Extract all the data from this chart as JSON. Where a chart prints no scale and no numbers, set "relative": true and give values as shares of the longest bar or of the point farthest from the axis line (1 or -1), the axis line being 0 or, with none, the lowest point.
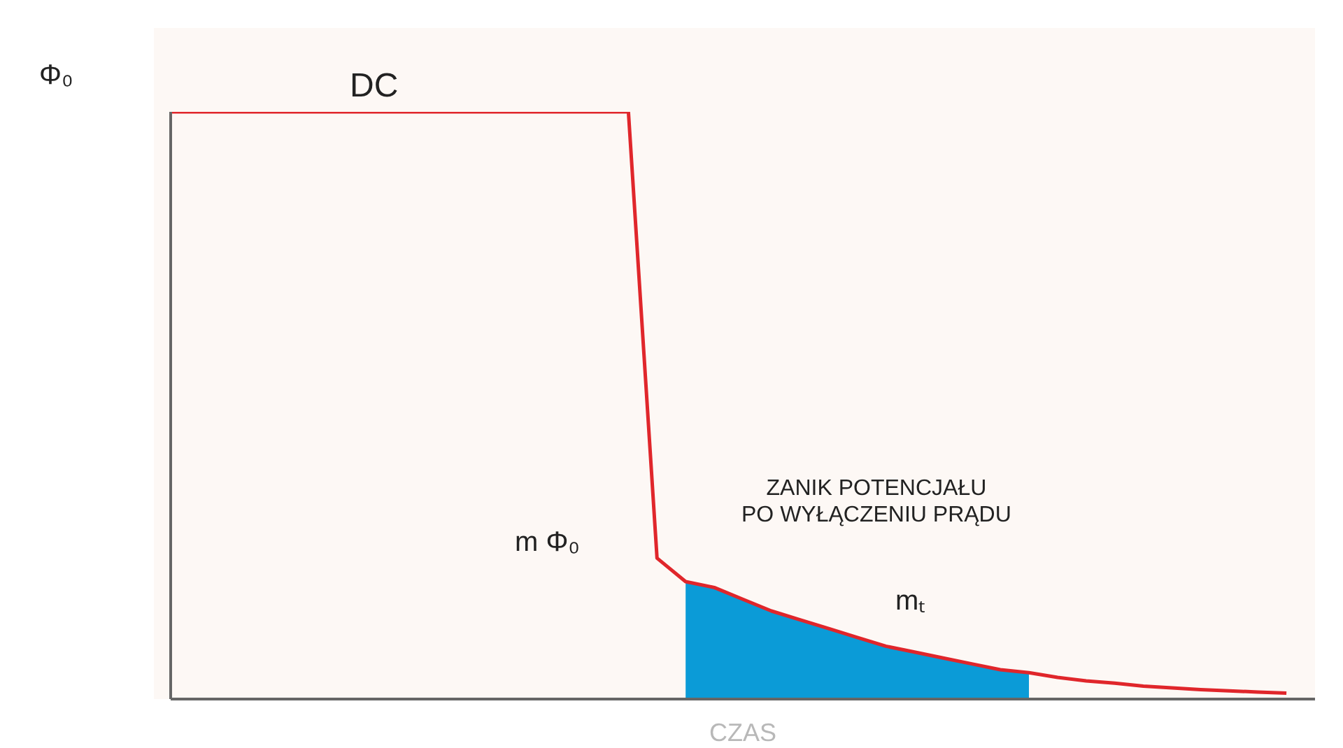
{
  "chart_data": {
    "type": "line",
    "relative": true,
    "xlabel": "CZAS",
    "categories": [
      null,
      null,
      null,
      null,
      null,
      null,
      null,
      null,
      null,
      null,
      null,
      null,
      null,
      null,
      null,
      null,
      null,
      null,
      null,
      null,
      null,
      null,
      null,
      null,
      null,
      null,
      null,
      null,
      null,
      null,
      null,
      null,
      null,
      null,
      null,
      null,
      null,
      null,
      null,
      null,
      null
    ],
    "series": [
      {
        "type": "area",
        "color": "#0b9bd7",
        "values": [
          null,
          null,
          null,
          null,
          null,
          null,
          null,
          null,
          null,
          null,
          null,
          null,
          null,
          null,
          null,
          null,
          null,
          null,
          0.2,
          0.19,
          0.17,
          0.15,
          0.135,
          0.12,
          0.105,
          0.09,
          0.08,
          0.07,
          0.06,
          0.05,
          0.045,
          null,
          null,
          null,
          null,
          null,
          null,
          null,
          null,
          null,
          null
        ]
      },
      {
        "color": "#e0262b",
        "values": [
          1,
          1,
          1,
          1,
          1,
          1,
          1,
          1,
          1,
          1,
          1,
          1,
          1,
          1,
          1,
          1,
          1,
          0.24,
          0.2,
          0.19,
          0.17,
          0.15,
          0.135,
          0.12,
          0.105,
          0.09,
          0.08,
          0.07,
          0.06,
          0.05,
          0.045,
          0.037,
          0.031,
          0.027,
          0.022,
          0.019,
          0.016,
          0.014,
          0.012,
          0.01,
          null
        ]
      }
    ],
    "annotations": [
      "Φ₀",
      "DC",
      "m Φ₀",
      "ZANIK POTENCJAŁU\nPO WYŁĄCZENIU PRĄDU",
      "mₜ"
    ]
  }
}
